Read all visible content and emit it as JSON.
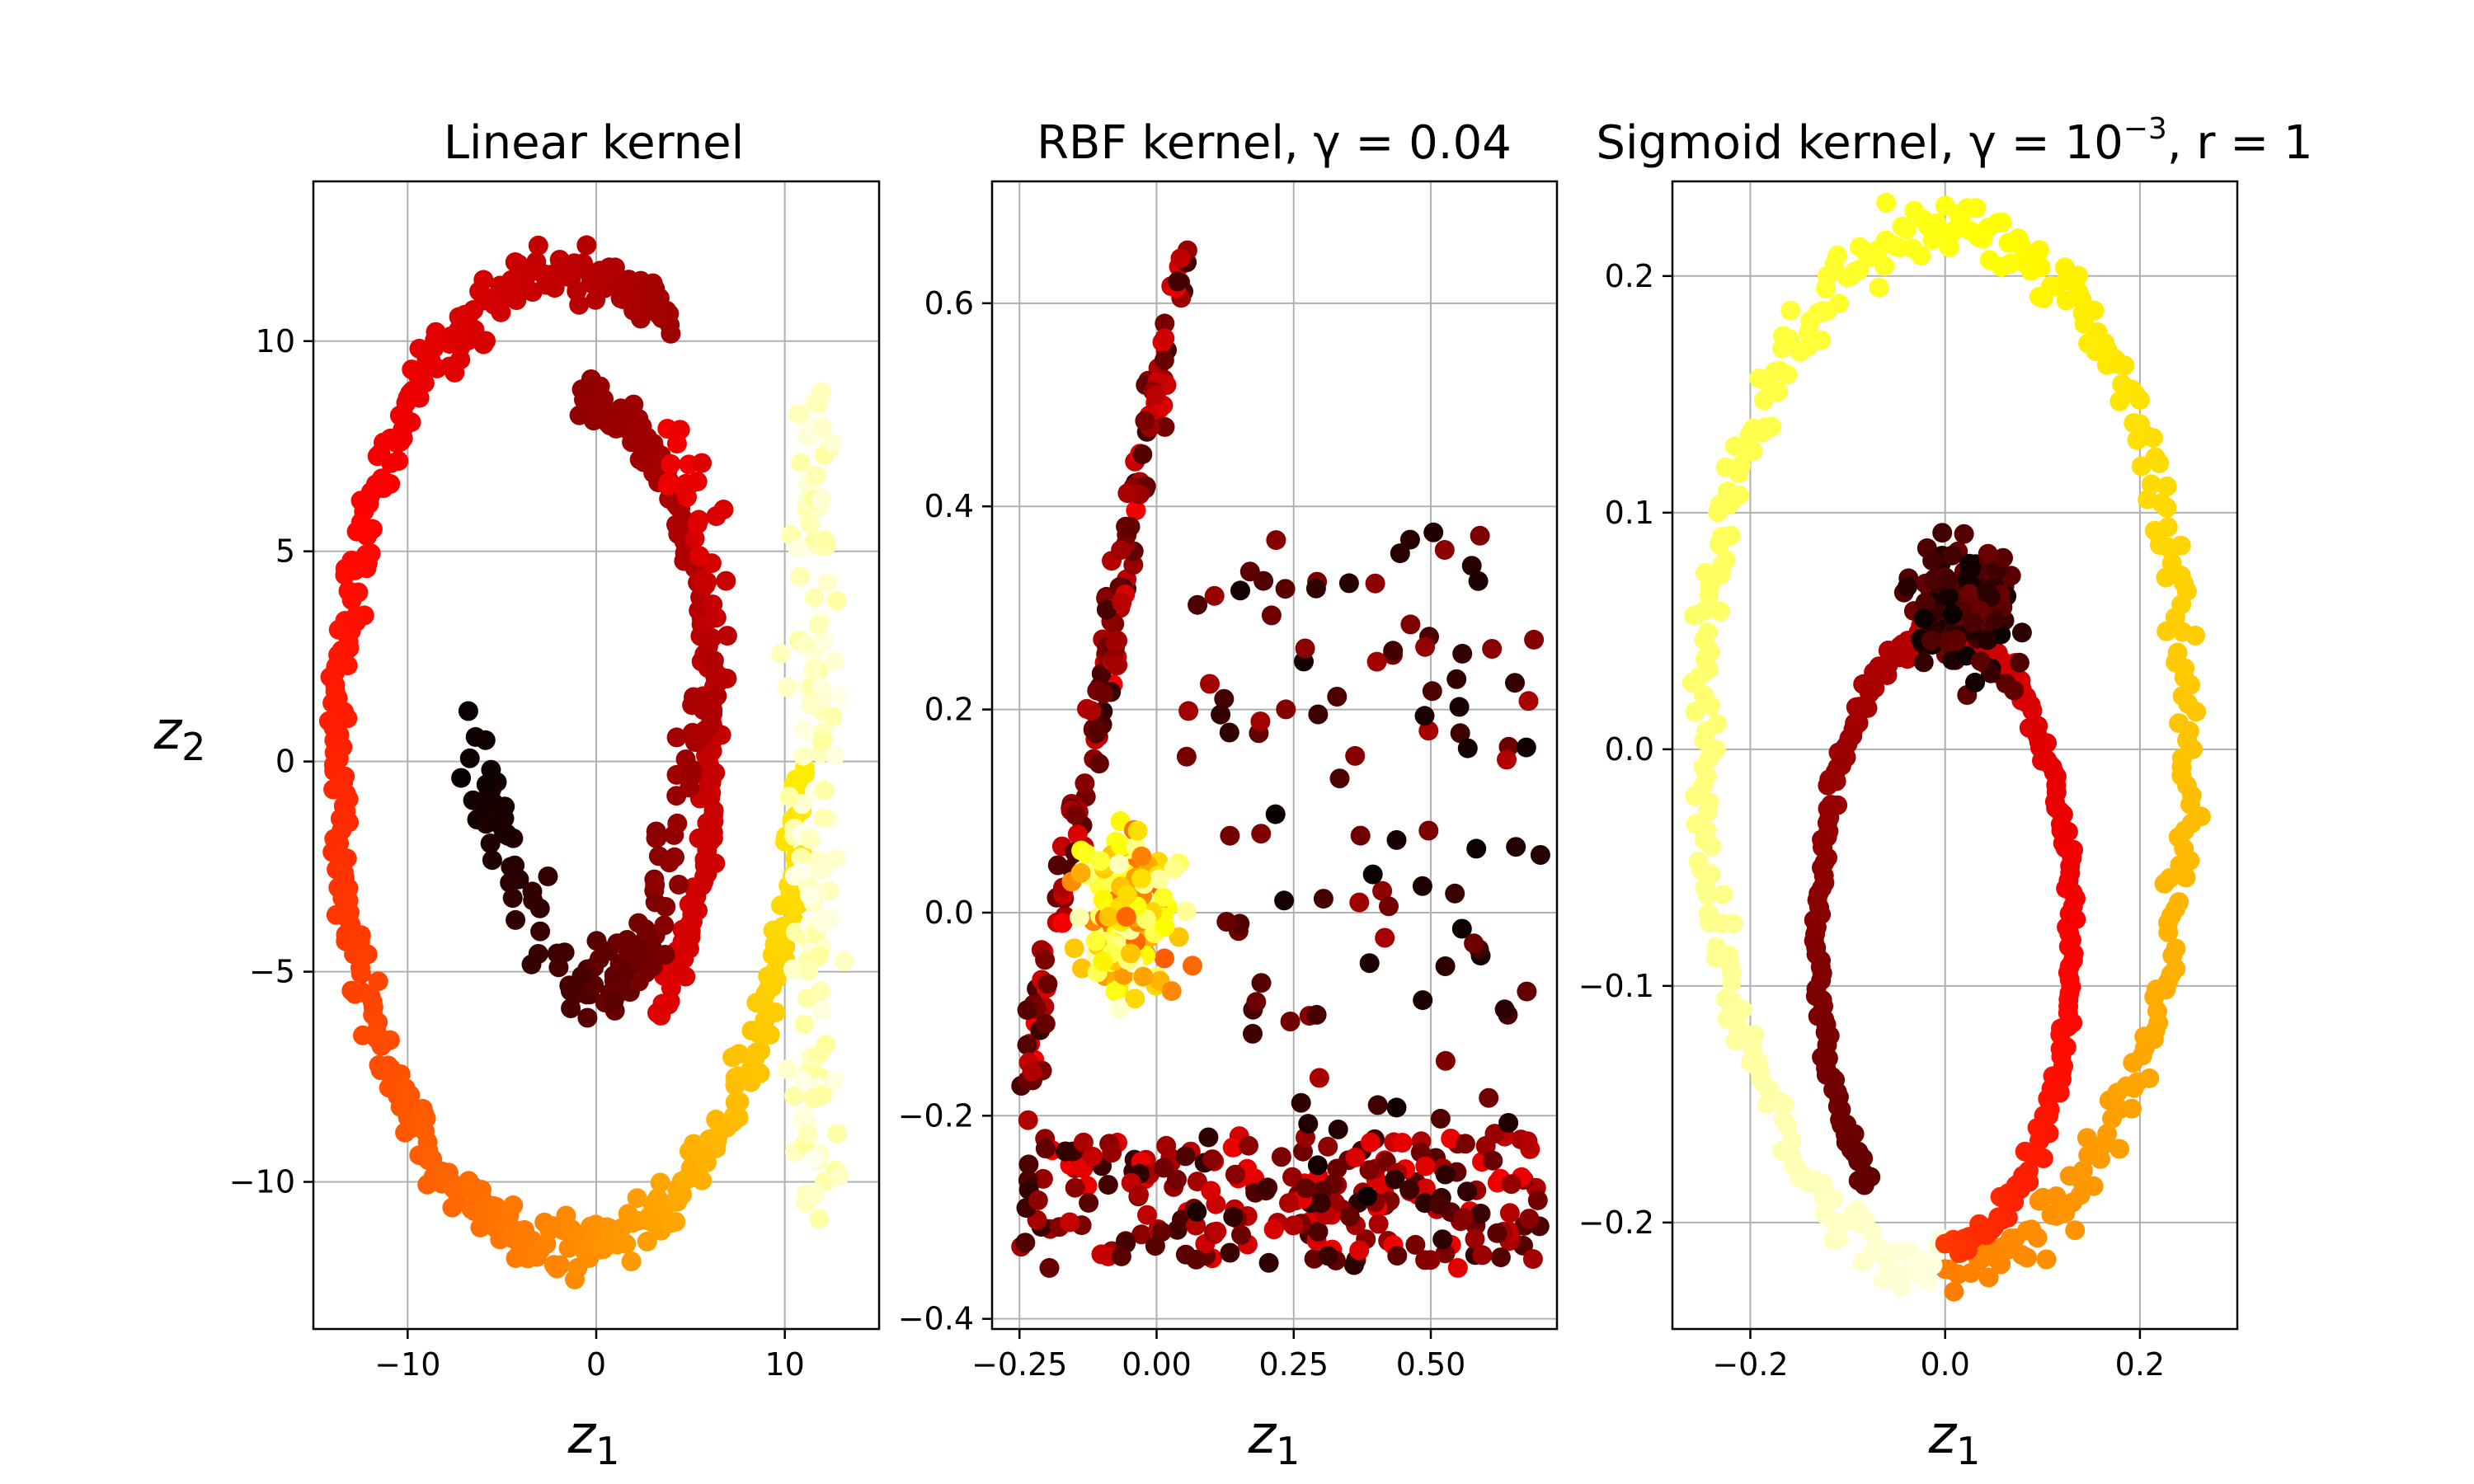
{
  "chart_data": [
    {
      "type": "scatter",
      "title": "Linear kernel",
      "xlabel": "z",
      "xlabel_sub": "1",
      "ylabel": "z",
      "ylabel_sub": "2",
      "xlim": [
        -15,
        15
      ],
      "ylim": [
        -13.5,
        13.8
      ],
      "xticks": [
        -10,
        0,
        10
      ],
      "xtick_labels": [
        "−10",
        "0",
        "10"
      ],
      "yticks": [
        -10,
        -5,
        0,
        5,
        10
      ],
      "ytick_labels": [
        "−10",
        "−5",
        "0",
        "5",
        "10"
      ],
      "grid": true,
      "colormap": "hot",
      "shape": "swiss-roll projection",
      "outer_ring": {
        "cx": -1.5,
        "cy": 0,
        "rx": 12.2,
        "ry": 11.6,
        "color_start": 0.25,
        "color_end": 0.85
      },
      "tail": {
        "cx": 11.5,
        "cy": -1.0,
        "rx": 2.0,
        "ry": 10.0,
        "color": 0.95
      },
      "inner_arc": [
        [
          -6.5,
          0.5
        ],
        [
          -4,
          -3
        ],
        [
          -1,
          -5.5
        ],
        [
          2,
          -5
        ],
        [
          4,
          -2
        ],
        [
          6,
          2
        ],
        [
          6,
          5
        ],
        [
          4,
          8
        ]
      ],
      "inner_arc_color": [
        0.0,
        0.35
      ]
    },
    {
      "type": "scatter",
      "title": "RBF kernel, γ = 0.04",
      "xlabel": "z",
      "xlabel_sub": "1",
      "xlim": [
        -0.3,
        0.73
      ],
      "ylim": [
        -0.41,
        0.72
      ],
      "xticks": [
        -0.25,
        0.0,
        0.25,
        0.5
      ],
      "xtick_labels": [
        "−0.25",
        "0.00",
        "0.25",
        "0.50"
      ],
      "yticks": [
        -0.4,
        -0.2,
        0.0,
        0.2,
        0.4,
        0.6
      ],
      "ytick_labels": [
        "−0.4",
        "−0.2",
        "0.0",
        "0.2",
        "0.4",
        "0.6"
      ],
      "grid": true,
      "colormap": "hot",
      "shape": "triangle-like region",
      "left_edge": [
        [
          -0.25,
          -0.2
        ],
        [
          -0.15,
          0.2
        ],
        [
          -0.05,
          0.5
        ],
        [
          0.05,
          0.65
        ]
      ],
      "bottom_edge": [
        [
          -0.25,
          -0.25
        ],
        [
          0.1,
          -0.33
        ],
        [
          0.4,
          -0.35
        ],
        [
          0.68,
          -0.3
        ]
      ],
      "right_edge": [
        [
          0.05,
          0.65
        ],
        [
          0.3,
          0.5
        ],
        [
          0.55,
          0.3
        ],
        [
          0.7,
          -0.2
        ]
      ],
      "bright_cluster": {
        "cx": -0.05,
        "cy": 0.0,
        "rx": 0.13,
        "ry": 0.12
      }
    },
    {
      "type": "scatter",
      "title": "Sigmoid kernel, γ = 10",
      "title_sup": "−3",
      "title_tail": ", r = 1",
      "xlabel": "z",
      "xlabel_sub": "1",
      "xlim": [
        -0.28,
        0.3
      ],
      "ylim": [
        -0.245,
        0.24
      ],
      "xticks": [
        -0.2,
        0.0,
        0.2
      ],
      "xtick_labels": [
        "−0.2",
        "0.0",
        "0.2"
      ],
      "yticks": [
        -0.2,
        -0.1,
        0.0,
        0.1,
        0.2
      ],
      "ytick_labels": [
        "−0.2",
        "−0.1",
        "0.0",
        "0.1",
        "0.2"
      ],
      "grid": true,
      "colormap": "hot",
      "shape": "nested ovals",
      "outer_oval": {
        "cx": 0.0,
        "cy": 0.0,
        "rx": 0.25,
        "ry": 0.22
      },
      "inner_oval": {
        "cx": 0.0,
        "cy": -0.08,
        "rx": 0.13,
        "ry": 0.13
      },
      "dark_cluster": {
        "cx": 0.02,
        "cy": 0.06,
        "rx": 0.08,
        "ry": 0.04
      }
    }
  ]
}
